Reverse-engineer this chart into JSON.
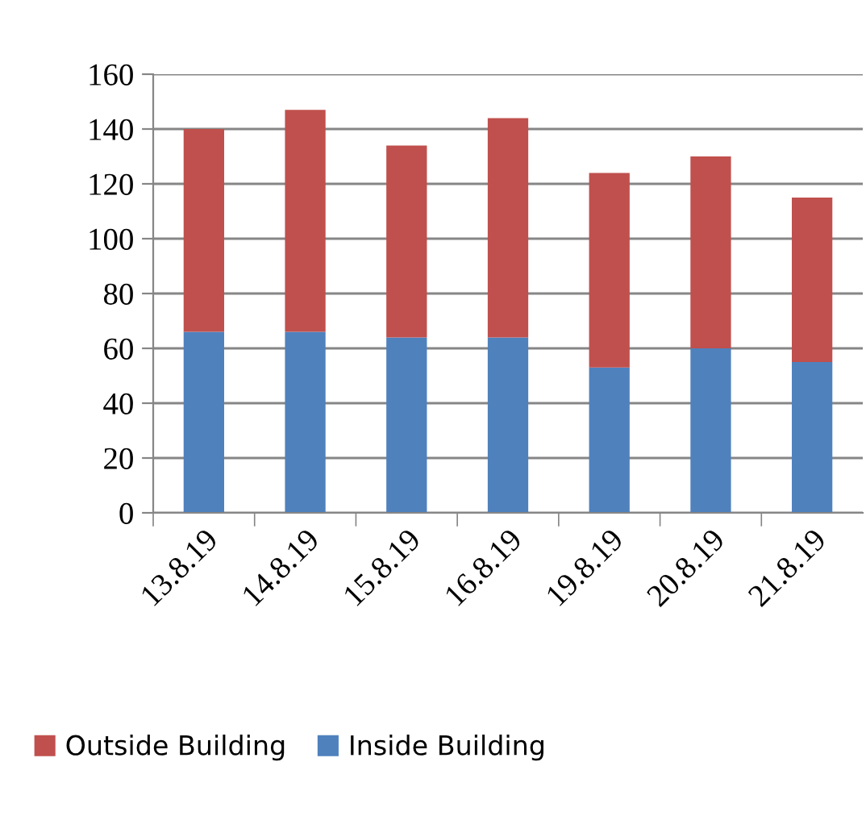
{
  "chart_data": {
    "type": "bar",
    "stacked": true,
    "categories": [
      "13.8.19",
      "14.8.19",
      "15.8.19",
      "16.8.19",
      "19.8.19",
      "20.8.19",
      "21.8.19"
    ],
    "series": [
      {
        "name": "Inside Building",
        "color": "#4f81bd",
        "values": [
          66,
          66,
          64,
          64,
          53,
          60,
          55
        ]
      },
      {
        "name": "Outside Building",
        "color": "#c0504d",
        "values": [
          74,
          81,
          70,
          80,
          71,
          70,
          60
        ]
      }
    ],
    "ylim": [
      0,
      160
    ],
    "yticks": [
      0,
      20,
      40,
      60,
      80,
      100,
      120,
      140,
      160
    ],
    "grid": "y",
    "legend": "bottom"
  }
}
